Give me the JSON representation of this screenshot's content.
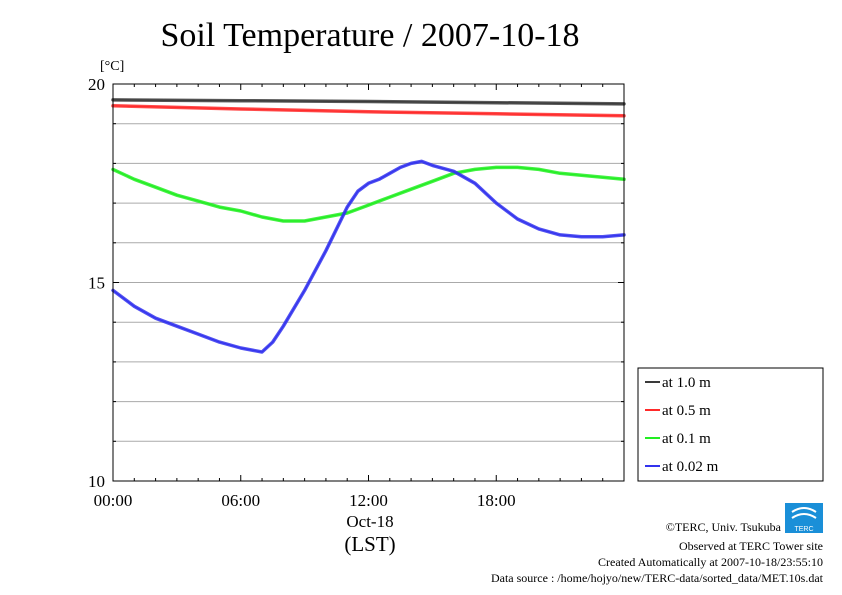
{
  "chart_data": {
    "type": "line",
    "title": "Soil Temperature / 2007-10-18",
    "ylabel": "[°C]",
    "ylim": [
      10,
      20
    ],
    "yticks": [
      "20",
      "15",
      "10"
    ],
    "xlim": [
      0,
      24
    ],
    "xticks": [
      "00:00",
      "06:00",
      "12:00",
      "18:00"
    ],
    "date_label": "Oct-18",
    "xlabel": "(LST)",
    "grid": true,
    "legend_position": "right",
    "series": [
      {
        "name": "at 1.0 m",
        "color": "#3a3a3a",
        "x": [
          0,
          6,
          12,
          18,
          24
        ],
        "y": [
          19.6,
          19.58,
          19.56,
          19.53,
          19.5
        ]
      },
      {
        "name": "at 0.5 m",
        "color": "#ff2a2a",
        "x": [
          0,
          6,
          12,
          18,
          24
        ],
        "y": [
          19.45,
          19.37,
          19.3,
          19.25,
          19.2
        ]
      },
      {
        "name": "at 0.1 m",
        "color": "#22ee22",
        "x": [
          0,
          1,
          2,
          3,
          4,
          5,
          6,
          7,
          8,
          9,
          10,
          11,
          12,
          13,
          14,
          15,
          16,
          17,
          18,
          19,
          20,
          21,
          22,
          23,
          24
        ],
        "y": [
          17.85,
          17.6,
          17.4,
          17.2,
          17.05,
          16.9,
          16.8,
          16.65,
          16.55,
          16.55,
          16.65,
          16.75,
          16.95,
          17.15,
          17.35,
          17.55,
          17.75,
          17.85,
          17.9,
          17.9,
          17.85,
          17.75,
          17.7,
          17.65,
          17.6
        ]
      },
      {
        "name": "at 0.02 m",
        "color": "#3333ee",
        "x": [
          0,
          1,
          2,
          3,
          4,
          5,
          6,
          6.5,
          7,
          7.5,
          8,
          9,
          10,
          11,
          11.5,
          12,
          12.5,
          13,
          13.5,
          14,
          14.5,
          15,
          16,
          17,
          18,
          19,
          20,
          21,
          22,
          23,
          24
        ],
        "y": [
          14.8,
          14.4,
          14.1,
          13.9,
          13.7,
          13.5,
          13.35,
          13.3,
          13.25,
          13.5,
          13.9,
          14.8,
          15.8,
          16.9,
          17.3,
          17.5,
          17.6,
          17.75,
          17.9,
          18.0,
          18.05,
          17.95,
          17.8,
          17.5,
          17.0,
          16.6,
          16.35,
          16.2,
          16.15,
          16.15,
          16.2
        ]
      }
    ]
  },
  "credits": {
    "line1": "©TERC, Univ. Tsukuba",
    "line2": "Observed at TERC Tower site",
    "line3": "Created Automatically at 2007-10-18/23:55:10",
    "line4": "Data source : /home/hojyo/new/TERC-data/sorted_data/MET.10s.dat"
  },
  "logo_text": "TERC",
  "colors": {
    "frame": "#000000",
    "grid": "#aaaaaa",
    "logo": "#1a8fd8"
  }
}
